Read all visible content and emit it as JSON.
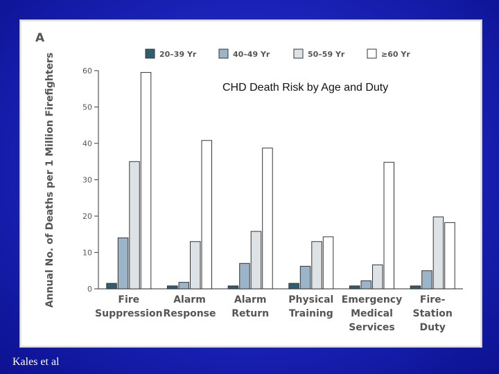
{
  "panel": {
    "letter": "A"
  },
  "overlay_title": "CHD Death Risk by Age and Duty",
  "credit": "Kales et al",
  "colors": {
    "series": [
      "#2f5f6f",
      "#9cb4c8",
      "#dde2e6",
      "#ffffff"
    ],
    "axis": "#555555",
    "bar_stroke": "#333333"
  },
  "chart_data": {
    "type": "bar",
    "title": "",
    "xlabel": "",
    "ylabel": "Annual No. of Deaths per 1 Million Firefighters",
    "ylim": [
      0,
      60
    ],
    "yticks": [
      0,
      10,
      20,
      30,
      40,
      50,
      60
    ],
    "legend_position": "top",
    "categories": [
      [
        "Fire",
        "Suppression"
      ],
      [
        "Alarm",
        "Response"
      ],
      [
        "Alarm",
        "Return"
      ],
      [
        "Physical",
        "Training"
      ],
      [
        "Emergency",
        "Medical",
        "Services"
      ],
      [
        "Fire-",
        "Station",
        "Duty"
      ]
    ],
    "series": [
      {
        "name": "20–39 Yr",
        "values": [
          1.5,
          0.8,
          0.8,
          1.5,
          0.8,
          0.8
        ]
      },
      {
        "name": "40–49 Yr",
        "values": [
          14,
          1.8,
          7,
          6.2,
          2.2,
          5
        ]
      },
      {
        "name": "50–59 Yr",
        "values": [
          35,
          13,
          15.8,
          13,
          6.6,
          19.8
        ]
      },
      {
        "name": "≥60 Yr",
        "values": [
          59.5,
          40.8,
          38.7,
          14.3,
          34.8,
          18.2
        ]
      }
    ]
  }
}
